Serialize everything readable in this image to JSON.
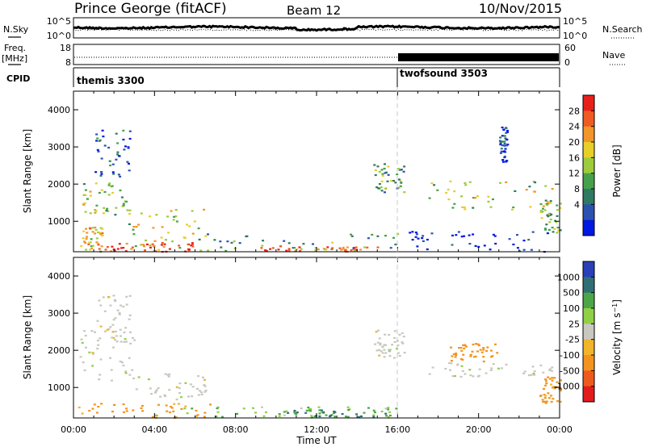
{
  "header": {
    "station": "Prince George (fitACF)",
    "beam": "Beam 12",
    "date": "10/Nov/2015"
  },
  "noise_panel": {
    "left_label": "N.Sky",
    "right_label": "N.Search",
    "tick_top": "10^5",
    "tick_bottom": "10^0"
  },
  "freq_panel": {
    "left_label_1": "Freq.",
    "left_label_2": "[MHz]",
    "right_label": "Nave",
    "left_ticks": [
      "18",
      "8"
    ],
    "right_ticks": [
      "60",
      "0"
    ]
  },
  "cpid_panel": {
    "label": "CPID",
    "segments": [
      {
        "name": "themis 3300",
        "start_hour": 0
      },
      {
        "name": "twofsound 3503",
        "start_hour": 16
      }
    ]
  },
  "chart_data": [
    {
      "type": "heatmap",
      "name": "power",
      "ylabel": "Slant Range [km]",
      "xlim": [
        0,
        24
      ],
      "ylim": [
        180,
        4500
      ],
      "yticks": [
        1000,
        2000,
        3000,
        4000
      ],
      "colorbar": {
        "label": "Power [dB]",
        "ticks": [
          "28",
          "24",
          "20",
          "16",
          "12",
          "8",
          "4"
        ],
        "colors": [
          "#0018e0",
          "#2c52b0",
          "#2f7a62",
          "#46a24a",
          "#9ecb3c",
          "#e7cf2a",
          "#f2952a",
          "#ef5b22",
          "#e8201c"
        ]
      },
      "regions": [
        {
          "x": [
            0.3,
            1.4
          ],
          "y": [
            200,
            900
          ],
          "level": 0.65
        },
        {
          "x": [
            0.4,
            2.6
          ],
          "y": [
            1200,
            2100
          ],
          "level": 0.5
        },
        {
          "x": [
            1.0,
            2.8
          ],
          "y": [
            2200,
            3500
          ],
          "level": 0.15
        },
        {
          "x": [
            2.6,
            6.5
          ],
          "y": [
            250,
            1400
          ],
          "level": 0.55
        },
        {
          "x": [
            1.5,
            6.0
          ],
          "y": [
            200,
            450
          ],
          "level": 0.9
        },
        {
          "x": [
            6.0,
            16.0
          ],
          "y": [
            220,
            700
          ],
          "level": 0.35
        },
        {
          "x": [
            9.0,
            15.0
          ],
          "y": [
            200,
            350
          ],
          "level": 0.75
        },
        {
          "x": [
            14.8,
            16.3
          ],
          "y": [
            1800,
            2600
          ],
          "level": 0.4
        },
        {
          "x": [
            17.5,
            23.8
          ],
          "y": [
            1300,
            2100
          ],
          "level": 0.5
        },
        {
          "x": [
            21.0,
            21.4
          ],
          "y": [
            2600,
            3600
          ],
          "level": 0.1
        },
        {
          "x": [
            23.0,
            24.0
          ],
          "y": [
            700,
            1600
          ],
          "level": 0.45
        },
        {
          "x": [
            16.0,
            23.5
          ],
          "y": [
            200,
            800
          ],
          "level": 0.05
        }
      ]
    },
    {
      "type": "heatmap",
      "name": "velocity",
      "ylabel": "Slant Range [km]",
      "xlabel": "Time UT",
      "xlim": [
        0,
        24
      ],
      "ylim": [
        180,
        4500
      ],
      "yticks": [
        1000,
        2000,
        3000,
        4000
      ],
      "xtick_labels": [
        "00:00",
        "04:00",
        "08:00",
        "12:00",
        "16:00",
        "20:00",
        "00:00"
      ],
      "colorbar": {
        "label": "Velocity [m s^-1]",
        "ticks": [
          "1000",
          "500",
          "100",
          "25",
          "-25",
          "-100",
          "-500",
          "-1000"
        ],
        "colors": [
          "#2a3fb8",
          "#2f6f74",
          "#4ca648",
          "#8fd046",
          "#c8c8c0",
          "#f0b52a",
          "#f3941e",
          "#ee5a1e",
          "#e21c1c"
        ]
      },
      "regions": [
        {
          "x": [
            0.3,
            3.0
          ],
          "y": [
            1200,
            2600
          ],
          "v": 0
        },
        {
          "x": [
            1.0,
            2.8
          ],
          "y": [
            2200,
            3500
          ],
          "v": 0
        },
        {
          "x": [
            2.8,
            6.5
          ],
          "y": [
            700,
            1400
          ],
          "v": 0
        },
        {
          "x": [
            0.0,
            7.0
          ],
          "y": [
            200,
            600
          ],
          "v": -150
        },
        {
          "x": [
            4.0,
            16.0
          ],
          "y": [
            200,
            500
          ],
          "v": 80
        },
        {
          "x": [
            10.0,
            15.5
          ],
          "y": [
            230,
            420
          ],
          "v": 500
        },
        {
          "x": [
            14.8,
            16.3
          ],
          "y": [
            1800,
            2600
          ],
          "v": 0
        },
        {
          "x": [
            17.5,
            23.8
          ],
          "y": [
            1300,
            1700
          ],
          "v": 0
        },
        {
          "x": [
            18.5,
            21.0
          ],
          "y": [
            1700,
            2200
          ],
          "v": -400
        },
        {
          "x": [
            23.0,
            24.0
          ],
          "y": [
            600,
            1300
          ],
          "v": -150
        }
      ]
    }
  ]
}
